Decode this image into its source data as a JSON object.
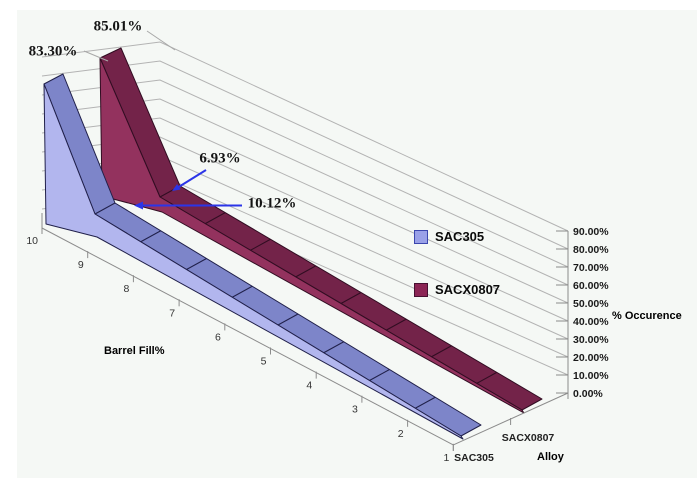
{
  "chart_data": {
    "type": "area",
    "projection": "3d",
    "title": "",
    "xlabel": "Barrel Fill%",
    "series_axis_label": "Alloy",
    "ylabel": "% Occurence",
    "categories": [
      10,
      9,
      8,
      7,
      6,
      5,
      4,
      3,
      2,
      1
    ],
    "ylim": [
      0,
      90
    ],
    "grid": true,
    "legend_position": "middle-right",
    "y_tick_labels": [
      "0.00%",
      "10.00%",
      "20.00%",
      "30.00%",
      "40.00%",
      "50.00%",
      "60.00%",
      "70.00%",
      "80.00%",
      "90.00%"
    ],
    "series": [
      {
        "name": "SAC305",
        "color_front": "#b2b6ee",
        "color_top": "#7d85c9",
        "outline": "#20204a",
        "swatch_fill": "#9aa1e8",
        "swatch_border": "#3c47ae",
        "values": [
          83.3,
          10.12,
          2.0,
          1.5,
          1.2,
          0.9,
          0.7,
          0.5,
          0.4,
          0.3
        ]
      },
      {
        "name": "SACX0807",
        "color_front": "#93325e",
        "color_top": "#732349",
        "outline": "#310d22",
        "swatch_fill": "#8c2555",
        "swatch_border": "#471031",
        "values": [
          85.01,
          6.93,
          2.4,
          1.8,
          1.4,
          1.1,
          0.8,
          0.6,
          0.5,
          0.4
        ]
      }
    ],
    "data_labels": [
      {
        "text": "83.30%",
        "series": "SAC305",
        "category": 10
      },
      {
        "text": "85.01%",
        "series": "SACX0807",
        "category": 10
      },
      {
        "text": "6.93%",
        "series": "SACX0807",
        "category": 9
      },
      {
        "text": "10.12%",
        "series": "SAC305",
        "category": 9
      }
    ],
    "annotation_arrow_color": "#2b35e8",
    "gridline_color": "#b3b3b3",
    "axis_color": "#8c8c8c",
    "plot_bg": "#f5f8f5"
  }
}
